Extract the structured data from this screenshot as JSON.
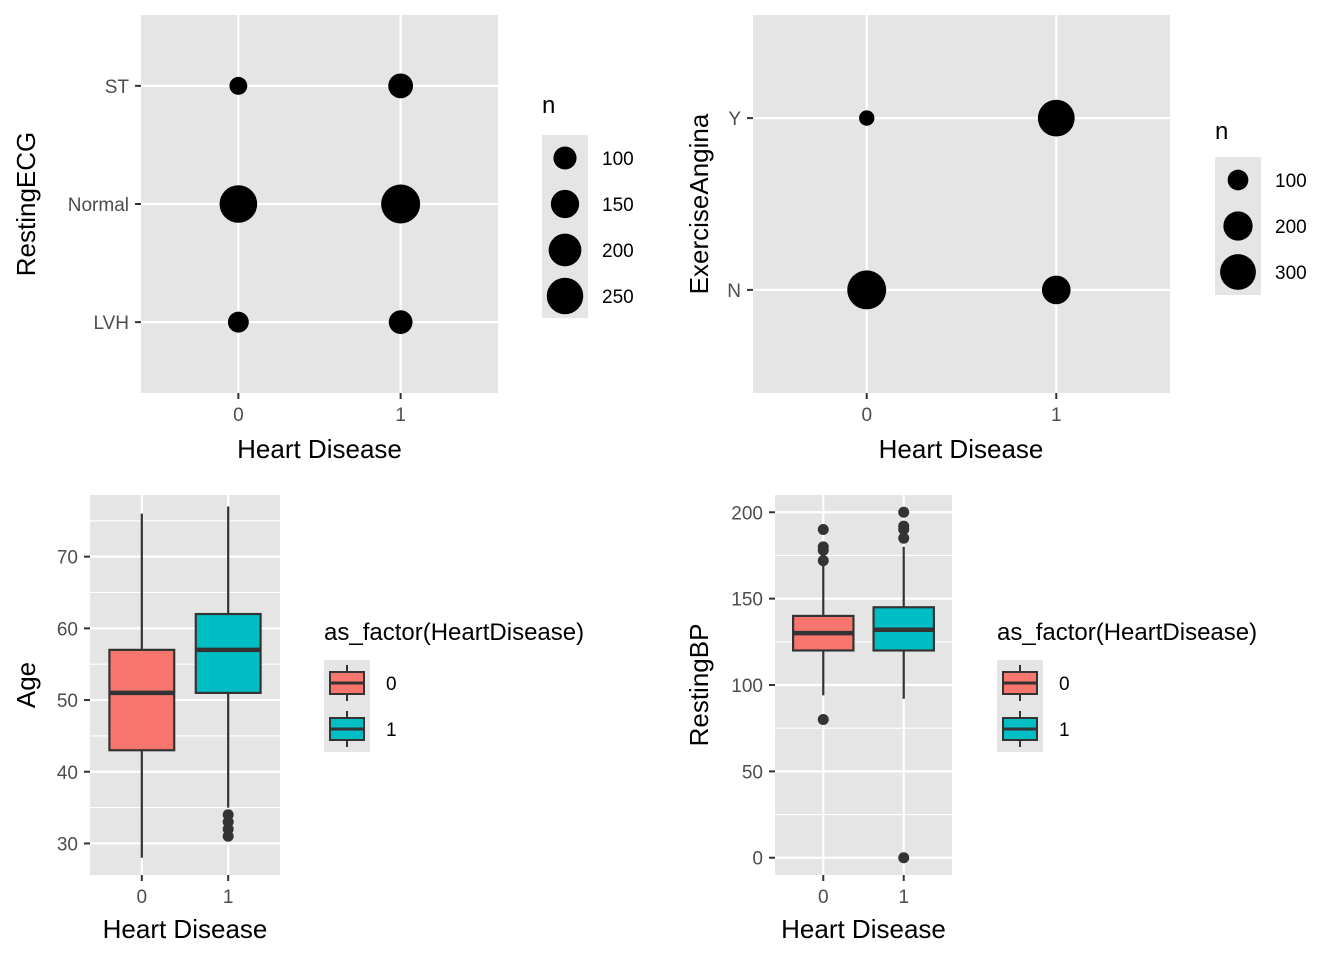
{
  "chart_data": [
    {
      "type": "scatter",
      "subtype": "count",
      "xlabel": "Heart Disease",
      "ylabel": "RestingECG",
      "x_categories": [
        "0",
        "1"
      ],
      "y_categories": [
        "LVH",
        "Normal",
        "ST"
      ],
      "points": [
        {
          "x": "0",
          "y": "ST",
          "n": 60
        },
        {
          "x": "1",
          "y": "ST",
          "n": 115
        },
        {
          "x": "0",
          "y": "Normal",
          "n": 265
        },
        {
          "x": "1",
          "y": "Normal",
          "n": 285
        },
        {
          "x": "0",
          "y": "LVH",
          "n": 82
        },
        {
          "x": "1",
          "y": "LVH",
          "n": 106
        }
      ],
      "legend": {
        "title": "n",
        "breaks": [
          100,
          150,
          200,
          250
        ],
        "placement": "right"
      },
      "grid": true
    },
    {
      "type": "scatter",
      "subtype": "count",
      "xlabel": "Heart Disease",
      "ylabel": "ExerciseAngina",
      "x_categories": [
        "0",
        "1"
      ],
      "y_categories": [
        "N",
        "Y"
      ],
      "points": [
        {
          "x": "0",
          "y": "Y",
          "n": 55
        },
        {
          "x": "1",
          "y": "Y",
          "n": 316
        },
        {
          "x": "0",
          "y": "N",
          "n": 355
        },
        {
          "x": "1",
          "y": "N",
          "n": 192
        }
      ],
      "legend": {
        "title": "n",
        "breaks": [
          100,
          200,
          300
        ],
        "placement": "right"
      },
      "grid": true
    },
    {
      "type": "box",
      "xlabel": "Heart Disease",
      "ylabel": "Age",
      "categories": [
        "0",
        "1"
      ],
      "ylim": [
        25.6,
        78.6
      ],
      "yticks": [
        30,
        40,
        50,
        60,
        70
      ],
      "boxes": [
        {
          "category": "0",
          "min": 28,
          "q1": 43,
          "median": 51,
          "q3": 57,
          "max": 76,
          "outliers": [],
          "color": "#F8766D"
        },
        {
          "category": "1",
          "min": 35,
          "q1": 51,
          "median": 57,
          "q3": 62,
          "max": 77,
          "outliers": [
            31,
            32,
            33,
            34
          ],
          "color": "#00BFC4"
        }
      ],
      "legend": {
        "title": "as_factor(HeartDisease)",
        "entries": [
          "0",
          "1"
        ],
        "placement": "right"
      },
      "grid": true
    },
    {
      "type": "box",
      "xlabel": "Heart Disease",
      "ylabel": "RestingBP",
      "categories": [
        "0",
        "1"
      ],
      "ylim": [
        -10,
        210
      ],
      "yticks": [
        0,
        50,
        100,
        150,
        200
      ],
      "boxes": [
        {
          "category": "0",
          "min": 94,
          "q1": 120,
          "median": 130,
          "q3": 140,
          "max": 170,
          "outliers": [
            80,
            172,
            178,
            180,
            190
          ],
          "color": "#F8766D"
        },
        {
          "category": "1",
          "min": 92,
          "q1": 120,
          "median": 132,
          "q3": 145,
          "max": 180,
          "outliers": [
            0,
            185,
            190,
            192,
            200
          ],
          "color": "#00BFC4"
        }
      ],
      "legend": {
        "title": "as_factor(HeartDisease)",
        "entries": [
          "0",
          "1"
        ],
        "placement": "right"
      },
      "grid": true
    }
  ]
}
